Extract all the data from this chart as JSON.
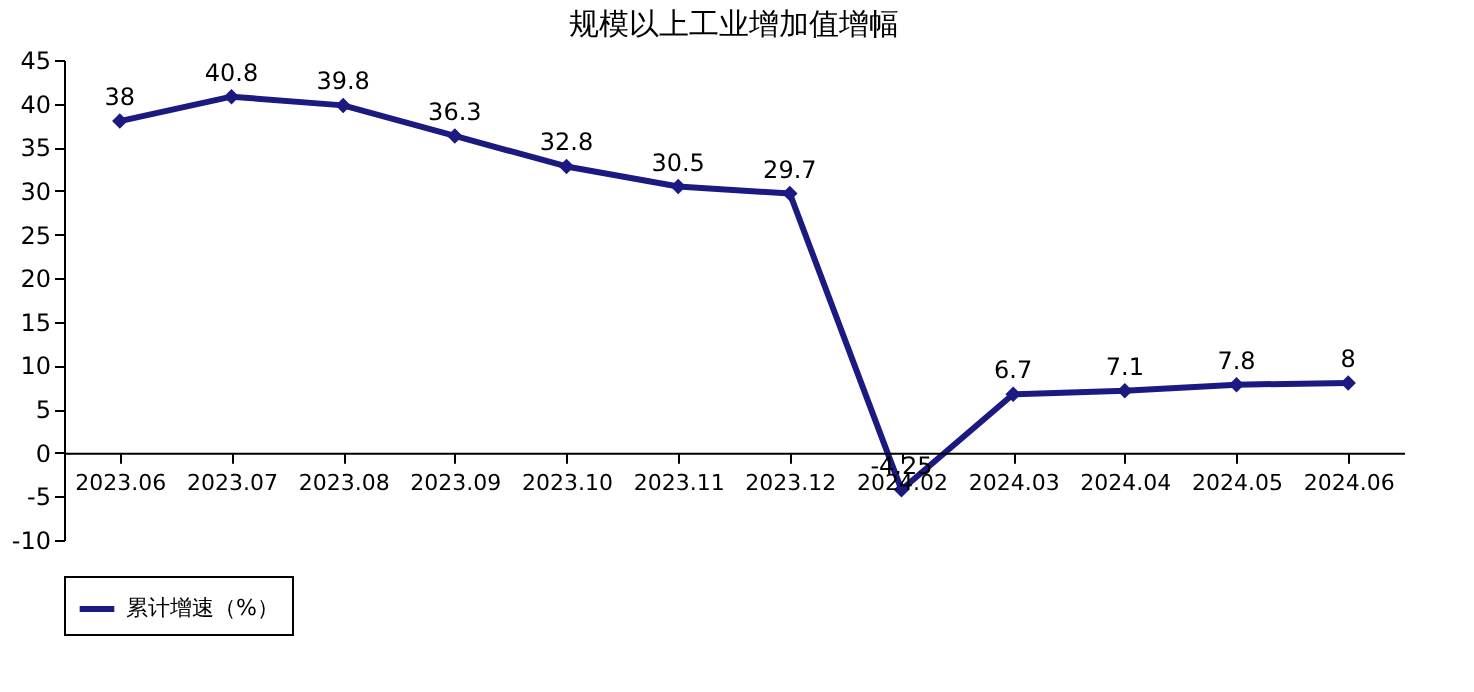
{
  "chart_data": {
    "type": "line",
    "title": "规模以上工业增加值增幅",
    "categories": [
      "2023.06",
      "2023.07",
      "2023.08",
      "2023.09",
      "2023.10",
      "2023.11",
      "2023.12",
      "2024.02",
      "2024.03",
      "2024.04",
      "2024.05",
      "2024.06"
    ],
    "series": [
      {
        "name": "累计增速（%）",
        "color": "#1a1a80",
        "values": [
          38,
          40.8,
          39.8,
          36.3,
          32.8,
          30.5,
          29.7,
          -4.25,
          6.7,
          7.1,
          7.8,
          8
        ]
      }
    ],
    "ylim": [
      -10,
      45
    ],
    "yticks": [
      -10,
      -5,
      0,
      5,
      10,
      15,
      20,
      25,
      30,
      35,
      40,
      45
    ],
    "grid": false,
    "legend": "bottom",
    "marker": "diamond",
    "line_style": "solid",
    "data_labels": true
  }
}
